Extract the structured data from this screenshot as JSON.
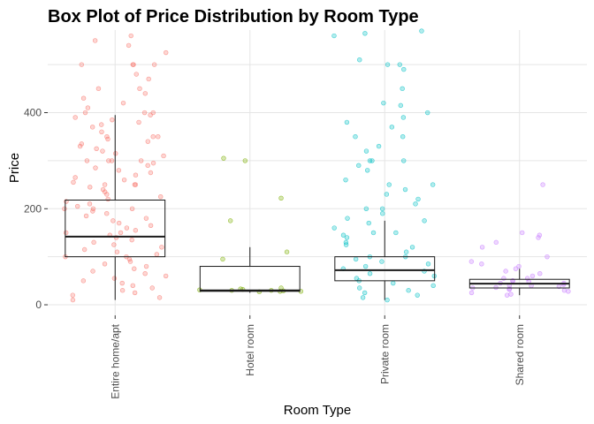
{
  "chart_data": {
    "type": "box",
    "title": "Box Plot of Price Distribution by Room Type",
    "xlabel": "Room Type",
    "ylabel": "Price",
    "ylim": [
      -22,
      572
    ],
    "yticks": [
      0,
      200,
      400
    ],
    "grid": true,
    "legend": "none",
    "categories": [
      "Entire home/apt",
      "Hotel room",
      "Private room",
      "Shared room"
    ],
    "colors": [
      "#F8766D",
      "#7CAE00",
      "#00BFC4",
      "#C77CFF"
    ],
    "boxes": [
      {
        "category": "Entire home/apt",
        "whisker_low": 10,
        "q1": 100,
        "median": 142,
        "q3": 218,
        "whisker_high": 395
      },
      {
        "category": "Hotel room",
        "whisker_low": 25,
        "q1": 28,
        "median": 30,
        "q3": 80,
        "whisker_high": 120
      },
      {
        "category": "Private room",
        "whisker_low": 10,
        "q1": 50,
        "median": 72,
        "q3": 100,
        "whisker_high": 175
      },
      {
        "category": "Shared room",
        "whisker_low": 20,
        "q1": 35,
        "median": 44,
        "q3": 53,
        "whisker_high": 75
      }
    ],
    "points": [
      {
        "category": "Entire home/apt",
        "values": [
          600,
          580,
          560,
          550,
          540,
          525,
          500,
          500,
          500,
          500,
          480,
          470,
          450,
          450,
          440,
          430,
          420,
          410,
          400,
          400,
          400,
          395,
          390,
          385,
          380,
          375,
          370,
          360,
          350,
          350,
          350,
          345,
          340,
          335,
          330,
          325,
          320,
          315,
          310,
          300,
          300,
          300,
          300,
          295,
          290,
          285,
          280,
          275,
          270,
          265,
          260,
          255,
          250,
          250,
          250,
          245,
          240,
          235,
          230,
          225,
          220,
          215,
          210,
          205,
          200,
          200,
          200,
          195,
          190,
          185,
          180,
          175,
          170,
          165,
          160,
          155,
          150,
          150,
          145,
          140,
          135,
          130,
          125,
          120,
          115,
          110,
          105,
          100,
          100,
          95,
          90,
          85,
          80,
          75,
          70,
          65,
          60,
          55,
          50,
          45,
          40,
          35,
          30,
          25,
          20,
          15,
          10
        ]
      },
      {
        "category": "Hotel room",
        "values": [
          305,
          300,
          222,
          175,
          110,
          95,
          35,
          33,
          32,
          31,
          30,
          30,
          29,
          28,
          28,
          27
        ]
      },
      {
        "category": "Private room",
        "values": [
          580,
          570,
          565,
          560,
          510,
          500,
          500,
          490,
          450,
          420,
          415,
          400,
          390,
          380,
          370,
          350,
          350,
          330,
          320,
          300,
          300,
          300,
          290,
          280,
          260,
          250,
          250,
          240,
          230,
          220,
          210,
          200,
          200,
          190,
          180,
          175,
          170,
          160,
          150,
          150,
          145,
          140,
          130,
          125,
          120,
          110,
          100,
          100,
          95,
          90,
          85,
          80,
          75,
          70,
          65,
          60,
          55,
          50,
          45,
          40,
          35,
          30,
          25,
          20,
          15,
          10
        ]
      },
      {
        "category": "Shared room",
        "values": [
          250,
          150,
          145,
          140,
          130,
          120,
          100,
          90,
          85,
          80,
          75,
          70,
          65,
          60,
          55,
          55,
          50,
          50,
          48,
          45,
          45,
          42,
          40,
          40,
          38,
          36,
          35,
          33,
          32,
          30,
          28,
          25,
          22,
          20
        ]
      }
    ]
  }
}
